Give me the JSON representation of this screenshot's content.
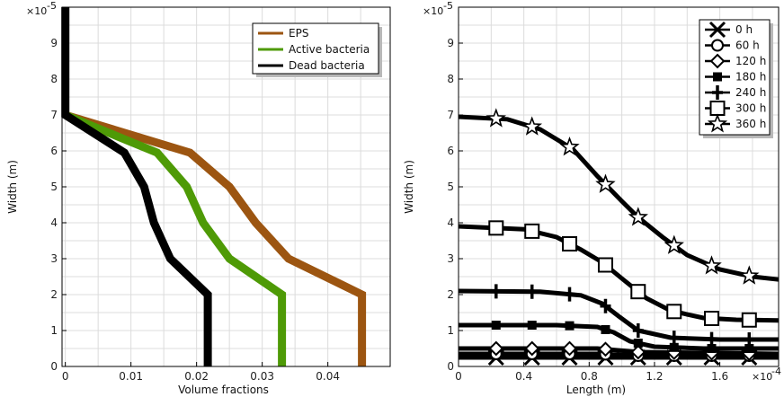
{
  "chart_data": [
    {
      "type": "line",
      "xlabel": "Volume fractions",
      "ylabel": "Width (m)",
      "x_ticks": [
        "0",
        "0.01",
        "0.02",
        "0.03",
        "0.04"
      ],
      "y_ticks": [
        "0",
        "1",
        "2",
        "3",
        "4",
        "5",
        "6",
        "7",
        "8",
        "9"
      ],
      "y_multiplier": "×10",
      "y_multiplier_exp": "-5",
      "xlim": [
        -0.0005,
        0.0495
      ],
      "ylim": [
        0,
        10
      ],
      "grid": true,
      "legend_position": "top-right",
      "series": [
        {
          "name": "EPS",
          "color": "#9C5511",
          "points": [
            [
              0,
              7
            ],
            [
              0.019,
              5.95
            ],
            [
              0.025,
              5
            ],
            [
              0.029,
              4
            ],
            [
              0.034,
              3
            ],
            [
              0.0452,
              2
            ],
            [
              0.0452,
              1
            ],
            [
              0.0452,
              0
            ]
          ]
        },
        {
          "name": "Active bacteria",
          "color": "#4E9A06",
          "points": [
            [
              0,
              7
            ],
            [
              0.014,
              5.95
            ],
            [
              0.0185,
              5
            ],
            [
              0.021,
              4
            ],
            [
              0.025,
              3
            ],
            [
              0.033,
              2
            ],
            [
              0.033,
              1
            ],
            [
              0.033,
              0
            ]
          ]
        },
        {
          "name": "Dead bacteria",
          "color": "#000000",
          "points": [
            [
              0,
              10
            ],
            [
              0,
              7
            ],
            [
              0.009,
              5.95
            ],
            [
              0.012,
              5
            ],
            [
              0.0135,
              4
            ],
            [
              0.016,
              3
            ],
            [
              0.0217,
              2
            ],
            [
              0.0217,
              1
            ],
            [
              0.0217,
              0
            ]
          ]
        }
      ]
    },
    {
      "type": "line",
      "xlabel": "Length (m)",
      "ylabel": "Width (m)",
      "x_ticks": [
        "0",
        "0.4",
        "0.8",
        "1.2",
        "1.6"
      ],
      "x_multiplier": "×10",
      "x_multiplier_exp": "-4",
      "y_ticks": [
        "0",
        "1",
        "2",
        "3",
        "4",
        "5",
        "6",
        "7",
        "8",
        "9"
      ],
      "y_multiplier": "×10",
      "y_multiplier_exp": "-5",
      "xlim": [
        0,
        1.96
      ],
      "ylim": [
        0,
        10
      ],
      "grid": true,
      "legend_position": "top-right",
      "series": [
        {
          "name": "0 h",
          "marker": "x",
          "points": [
            [
              0,
              0.25
            ],
            [
              0.8,
              0.25
            ],
            [
              1.0,
              0.25
            ],
            [
              1.96,
              0.25
            ]
          ]
        },
        {
          "name": "60 h",
          "marker": "circle",
          "points": [
            [
              0,
              0.35
            ],
            [
              0.85,
              0.35
            ],
            [
              1.1,
              0.3
            ],
            [
              1.96,
              0.3
            ]
          ]
        },
        {
          "name": "120 h",
          "marker": "diamond",
          "points": [
            [
              0,
              0.5
            ],
            [
              0.85,
              0.5
            ],
            [
              1.1,
              0.4
            ],
            [
              1.96,
              0.35
            ]
          ]
        },
        {
          "name": "180 h",
          "marker": "square-filled",
          "points": [
            [
              0,
              1.15
            ],
            [
              0.6,
              1.15
            ],
            [
              0.85,
              1.1
            ],
            [
              0.95,
              0.95
            ],
            [
              1.05,
              0.7
            ],
            [
              1.2,
              0.55
            ],
            [
              1.5,
              0.5
            ],
            [
              1.96,
              0.5
            ]
          ]
        },
        {
          "name": "240 h",
          "marker": "plus",
          "points": [
            [
              0,
              2.1
            ],
            [
              0.5,
              2.08
            ],
            [
              0.75,
              1.98
            ],
            [
              0.88,
              1.75
            ],
            [
              0.98,
              1.4
            ],
            [
              1.1,
              1.0
            ],
            [
              1.3,
              0.8
            ],
            [
              1.6,
              0.75
            ],
            [
              1.96,
              0.75
            ]
          ]
        },
        {
          "name": "300 h",
          "marker": "square",
          "points": [
            [
              0,
              3.9
            ],
            [
              0.4,
              3.82
            ],
            [
              0.6,
              3.6
            ],
            [
              0.75,
              3.25
            ],
            [
              0.88,
              2.9
            ],
            [
              1.0,
              2.45
            ],
            [
              1.15,
              1.9
            ],
            [
              1.3,
              1.55
            ],
            [
              1.5,
              1.35
            ],
            [
              1.7,
              1.3
            ],
            [
              1.96,
              1.28
            ]
          ]
        },
        {
          "name": "360 h",
          "marker": "star",
          "points": [
            [
              0,
              6.95
            ],
            [
              0.3,
              6.88
            ],
            [
              0.5,
              6.6
            ],
            [
              0.7,
              6.05
            ],
            [
              0.85,
              5.3
            ],
            [
              1.0,
              4.6
            ],
            [
              1.1,
              4.15
            ],
            [
              1.25,
              3.6
            ],
            [
              1.4,
              3.1
            ],
            [
              1.6,
              2.7
            ],
            [
              1.8,
              2.5
            ],
            [
              1.96,
              2.42
            ]
          ]
        }
      ]
    }
  ]
}
